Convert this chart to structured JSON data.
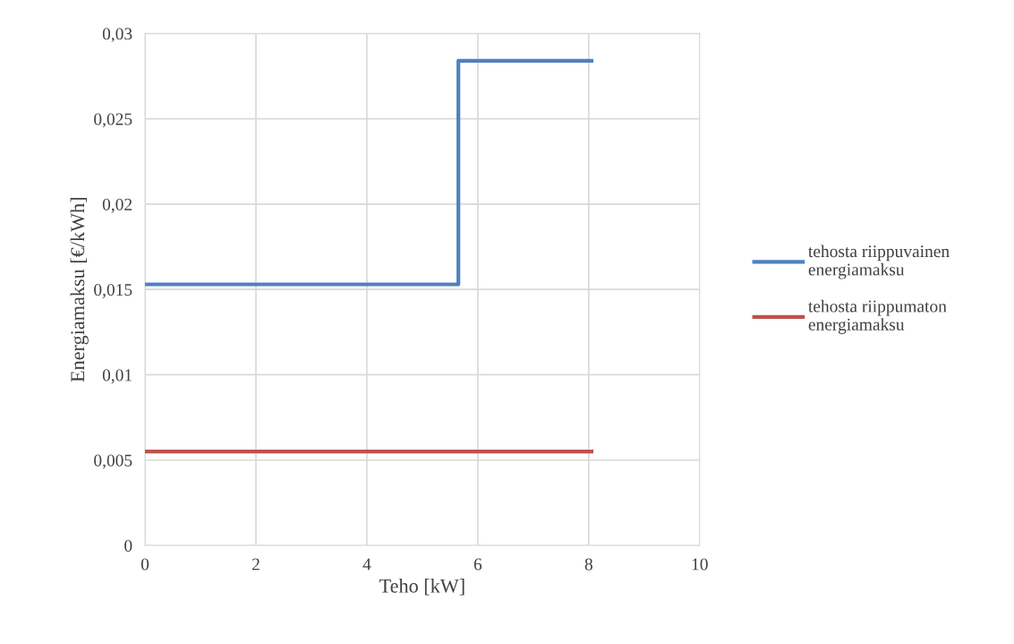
{
  "chart_data": {
    "type": "step",
    "xlabel": "Teho [kW]",
    "ylabel": "Energiamaksu [€/kWh]",
    "xlim": [
      0,
      10
    ],
    "xticks": [
      0,
      2,
      4,
      6,
      8,
      10
    ],
    "ylim": [
      0,
      0.03
    ],
    "yticks": [
      0,
      {
        "value": 0.005,
        "label": "0,005"
      },
      {
        "value": 0.01,
        "label": "0,01"
      },
      {
        "value": 0.015,
        "label": "0,015"
      },
      {
        "value": 0.02,
        "label": "0,02"
      },
      {
        "value": 0.025,
        "label": "0,025"
      },
      {
        "value": 0.03,
        "label": "0,03"
      }
    ],
    "grid": true,
    "legend": "right",
    "marker": "none",
    "line_style": "solid",
    "series": [
      {
        "name": "tehosta riippuvainen energiamaksu",
        "color": "#4f81bd",
        "x": [
          0,
          5.65,
          8.05
        ],
        "values": [
          0.0153,
          0.0284,
          0.0284
        ]
      },
      {
        "name": "tehosta riippumaton energiamaksu",
        "color": "#c0504d",
        "x": [
          0,
          8.05
        ],
        "values": [
          0.0055,
          0.0055
        ]
      }
    ]
  }
}
